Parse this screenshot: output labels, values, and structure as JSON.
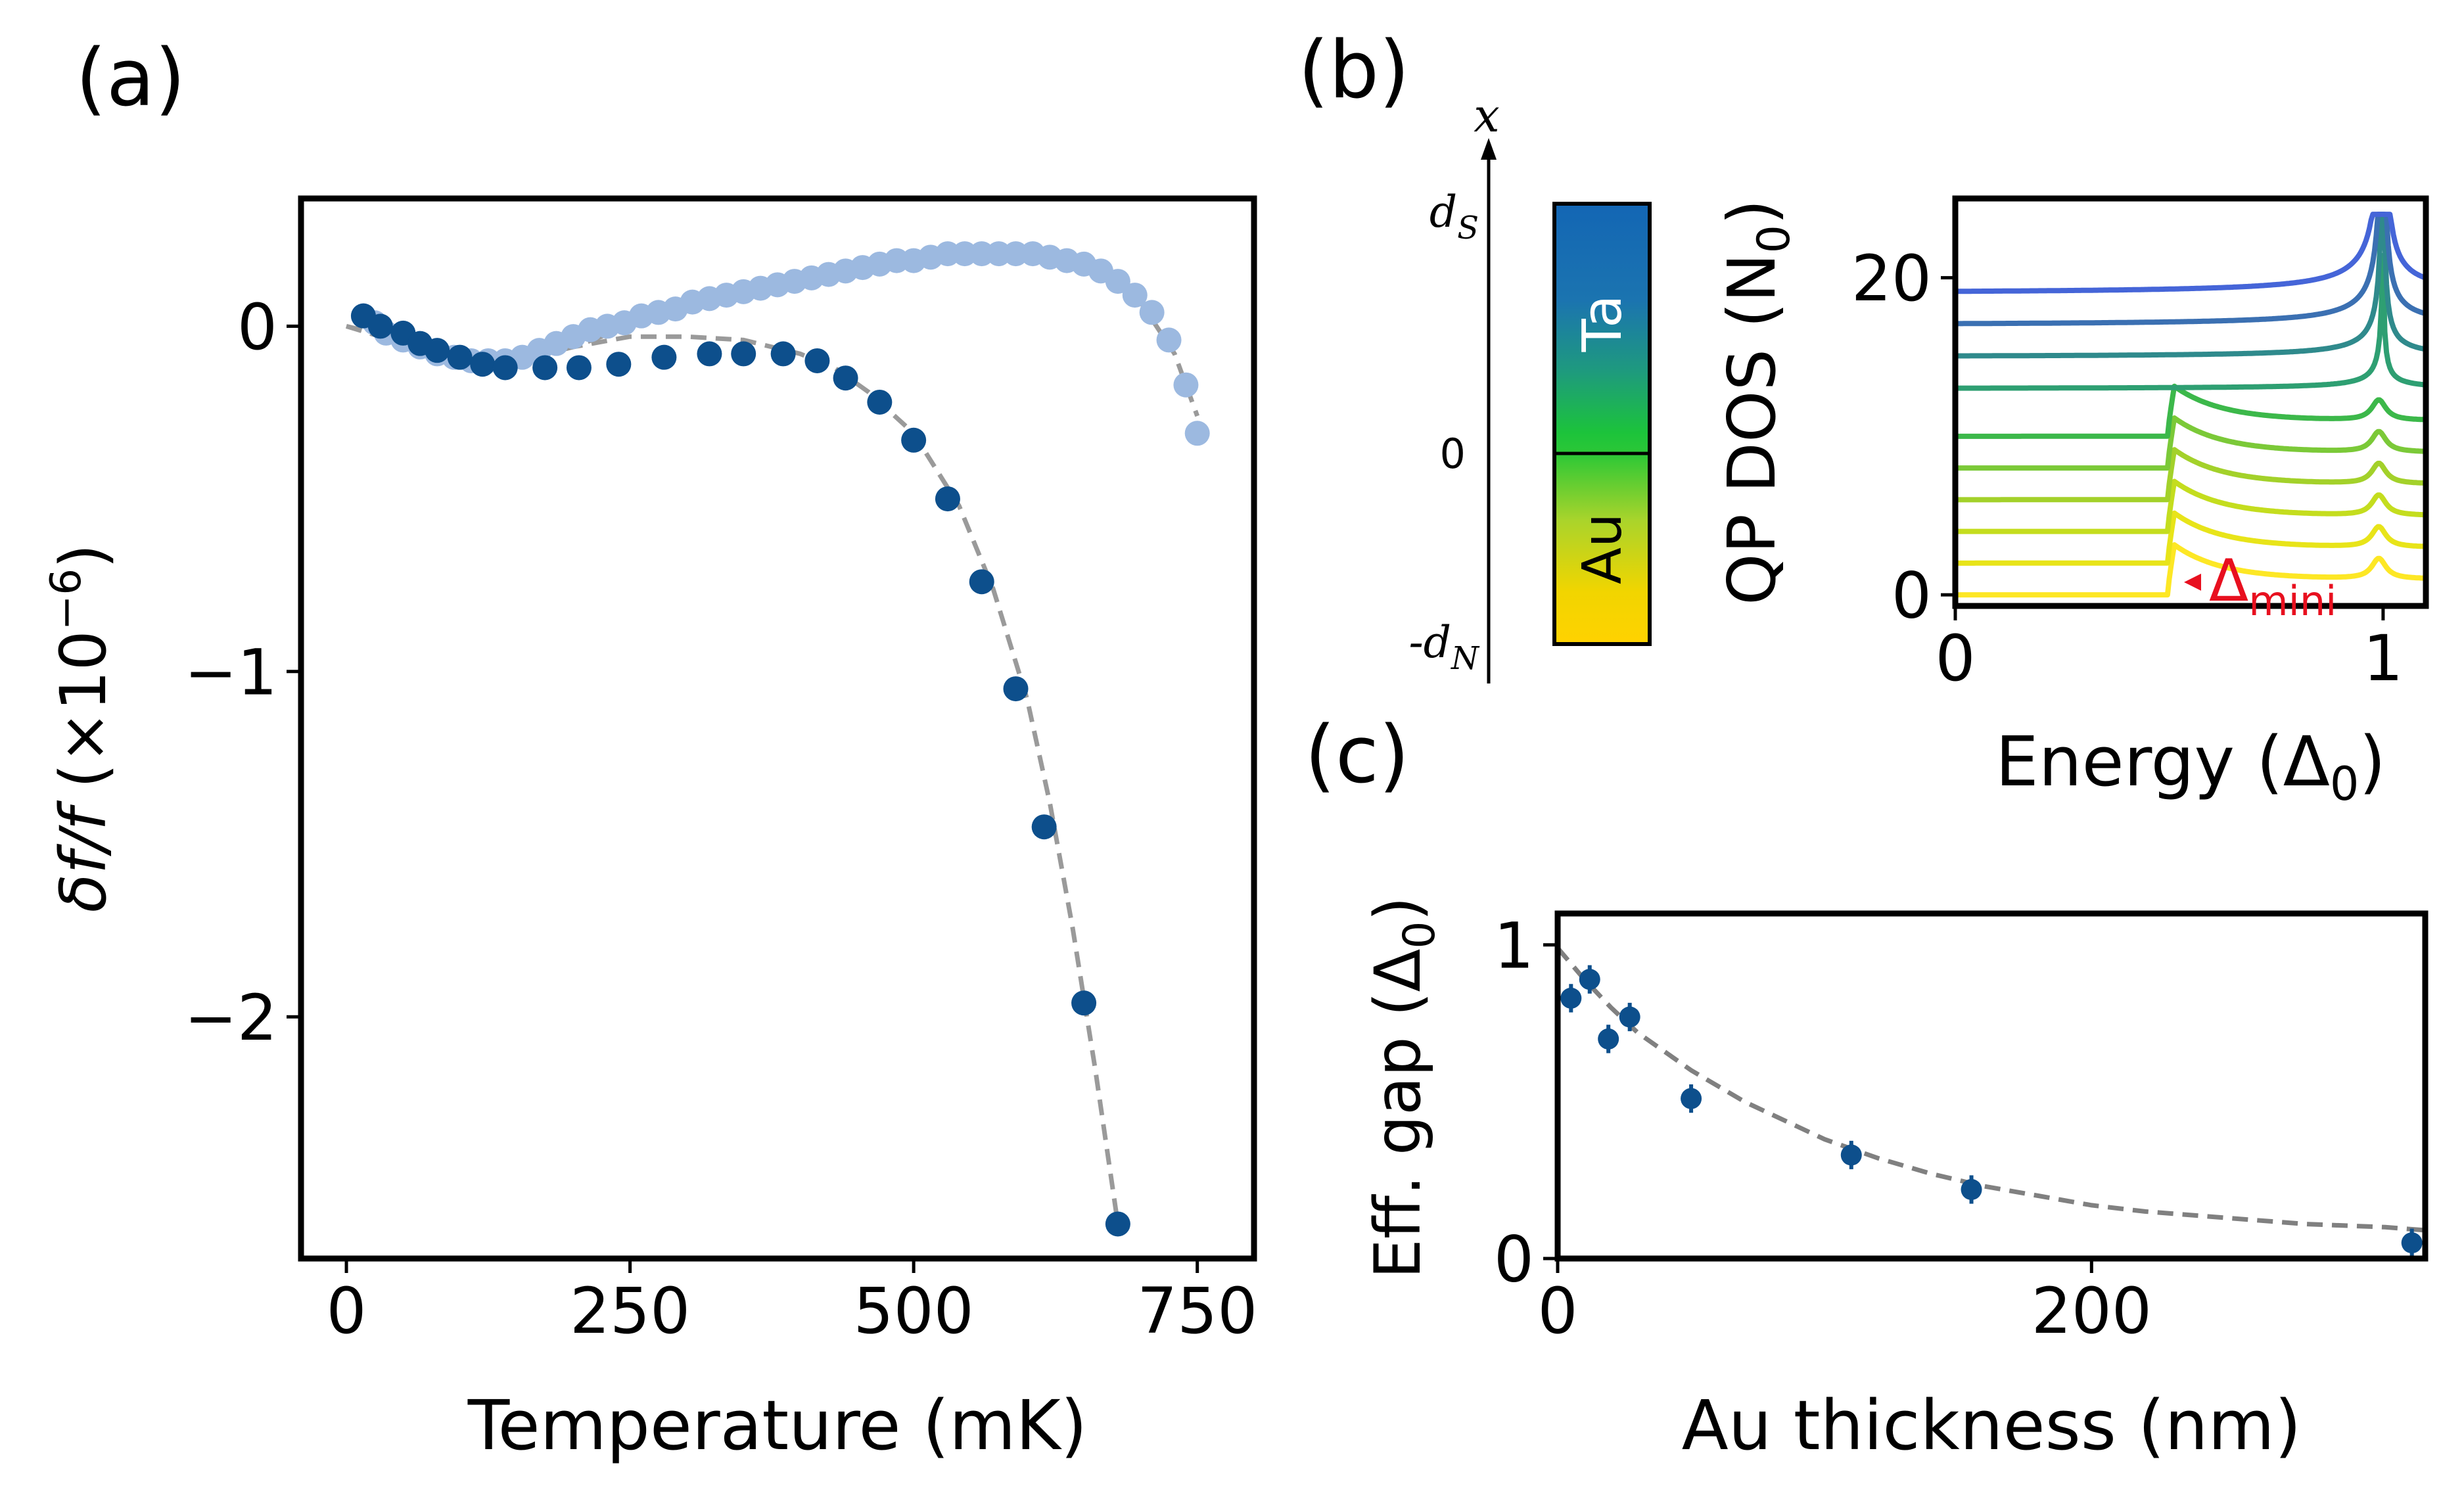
{
  "panels": {
    "a": "(a)",
    "b": "(b)",
    "c": "(c)"
  },
  "chart_data": [
    {
      "id": "a",
      "type": "scatter",
      "xlabel": "Temperature (mK)",
      "ylabel_main": "δf/f",
      "ylabel_unit": " (×10",
      "ylabel_exp": "−6",
      "ylabel_close": ")",
      "xlim": [
        -40,
        800
      ],
      "ylim": [
        -2.7,
        0.37
      ],
      "xticks": [
        0,
        250,
        500,
        750
      ],
      "yticks": [
        {
          "v": 0,
          "label": "0"
        },
        {
          "v": -1,
          "label": "−1"
        },
        {
          "v": -2,
          "label": "−2"
        }
      ],
      "series": [
        {
          "color": "#9cb9e0",
          "x": [
            15,
            25,
            35,
            50,
            65,
            80,
            95,
            110,
            125,
            140,
            155,
            170,
            185,
            200,
            215,
            230,
            245,
            260,
            275,
            290,
            305,
            320,
            335,
            350,
            365,
            380,
            395,
            410,
            425,
            440,
            455,
            470,
            485,
            500,
            515,
            530,
            545,
            560,
            575,
            590,
            605,
            620,
            635,
            650,
            665,
            680,
            695,
            710,
            725,
            740,
            750
          ],
          "y": [
            0.03,
            0.01,
            -0.02,
            -0.04,
            -0.06,
            -0.08,
            -0.09,
            -0.1,
            -0.1,
            -0.1,
            -0.09,
            -0.07,
            -0.05,
            -0.03,
            -0.01,
            0.0,
            0.01,
            0.03,
            0.04,
            0.05,
            0.07,
            0.08,
            0.09,
            0.1,
            0.11,
            0.12,
            0.13,
            0.14,
            0.15,
            0.16,
            0.17,
            0.18,
            0.19,
            0.19,
            0.2,
            0.21,
            0.21,
            0.21,
            0.21,
            0.21,
            0.21,
            0.2,
            0.19,
            0.18,
            0.16,
            0.13,
            0.09,
            0.04,
            -0.04,
            -0.17,
            -0.31
          ]
        },
        {
          "color": "#0d4f8c",
          "x": [
            15,
            30,
            50,
            65,
            80,
            100,
            120,
            140,
            175,
            205,
            240,
            280,
            320,
            350,
            385,
            415,
            440,
            470,
            500,
            530,
            560,
            590,
            615,
            650,
            680
          ],
          "y": [
            0.03,
            0.0,
            -0.02,
            -0.05,
            -0.07,
            -0.09,
            -0.11,
            -0.12,
            -0.12,
            -0.12,
            -0.11,
            -0.09,
            -0.08,
            -0.08,
            -0.08,
            -0.1,
            -0.15,
            -0.22,
            -0.33,
            -0.5,
            -0.74,
            -1.05,
            -1.45,
            -1.96,
            -2.6
          ]
        }
      ],
      "fits": [
        {
          "color": "#9a9a9a",
          "x": [
            0,
            50,
            100,
            140,
            200,
            250,
            300,
            350,
            400,
            450,
            500,
            550,
            580,
            620,
            660,
            700,
            730,
            750
          ],
          "y": [
            0.0,
            -0.05,
            -0.1,
            -0.11,
            -0.06,
            0.0,
            0.05,
            0.1,
            0.13,
            0.17,
            0.2,
            0.22,
            0.22,
            0.2,
            0.16,
            0.07,
            -0.08,
            -0.26
          ]
        },
        {
          "color": "#9a9a9a",
          "x": [
            0,
            50,
            100,
            150,
            200,
            250,
            300,
            350,
            400,
            430,
            460,
            500,
            540,
            570,
            600,
            620,
            640,
            660,
            680
          ],
          "y": [
            0.0,
            -0.04,
            -0.08,
            -0.09,
            -0.06,
            -0.03,
            -0.03,
            -0.04,
            -0.08,
            -0.12,
            -0.19,
            -0.31,
            -0.52,
            -0.76,
            -1.08,
            -1.38,
            -1.74,
            -2.15,
            -2.6
          ]
        }
      ]
    },
    {
      "id": "b",
      "type": "line",
      "xlabel": "Energy (Δ",
      "xlabel_sub": "0",
      "xlabel_close": ")",
      "ylabel": "QP DOS (N",
      "ylabel_sub": "0",
      "ylabel_close": ")",
      "xlim": [
        0,
        1.1
      ],
      "ylim": [
        -0.7,
        25
      ],
      "xticks": [
        0,
        1
      ],
      "yticks": [
        0,
        20
      ],
      "annotation": {
        "text": "Δ",
        "sub": "mini",
        "color": "#e8101f",
        "x": 0.55,
        "y": 0.8
      },
      "curve_count": 10,
      "offset_step": 2,
      "minigap_values": [
        0.5,
        0.5,
        0.5,
        0.5,
        0.5,
        0.5,
        1.0,
        1.0,
        1.0,
        1.0
      ],
      "colors": [
        "#fde725",
        "#e8e419",
        "#c4dd1e",
        "#a3d12a",
        "#7bc938",
        "#3cb84a",
        "#2e9f72",
        "#2f8a8c",
        "#3b70b2",
        "#4565d8"
      ]
    },
    {
      "id": "c",
      "type": "scatter",
      "xlabel": "Au thickness (nm)",
      "ylabel": "Eff. gap (Δ",
      "ylabel_sub": "0",
      "ylabel_close": ")",
      "xlim": [
        0,
        325
      ],
      "ylim": [
        0,
        1.1
      ],
      "xticks": [
        0,
        200
      ],
      "yticks": [
        0,
        1
      ],
      "series": [
        {
          "color": "#0d4f8c",
          "x": [
            5,
            12,
            19,
            27,
            50,
            110,
            155,
            320
          ],
          "y": [
            0.83,
            0.89,
            0.7,
            0.77,
            0.51,
            0.33,
            0.22,
            0.05
          ]
        }
      ],
      "fits": [
        {
          "color": "#808080",
          "x": [
            0,
            10,
            20,
            30,
            40,
            50,
            60,
            70,
            80,
            90,
            100,
            120,
            140,
            160,
            180,
            200,
            220,
            250,
            280,
            310,
            325
          ],
          "y": [
            0.99,
            0.89,
            0.8,
            0.72,
            0.66,
            0.6,
            0.55,
            0.5,
            0.46,
            0.42,
            0.38,
            0.32,
            0.27,
            0.23,
            0.2,
            0.17,
            0.15,
            0.13,
            0.11,
            0.1,
            0.09
          ]
        }
      ]
    }
  ],
  "schematic": {
    "axis_label": "x",
    "top_label": "d",
    "top_sub": "S",
    "zero_label": "0",
    "bottom_label": "-d",
    "bottom_sub": "N",
    "ta_label": "Ta",
    "au_label": "Au"
  }
}
